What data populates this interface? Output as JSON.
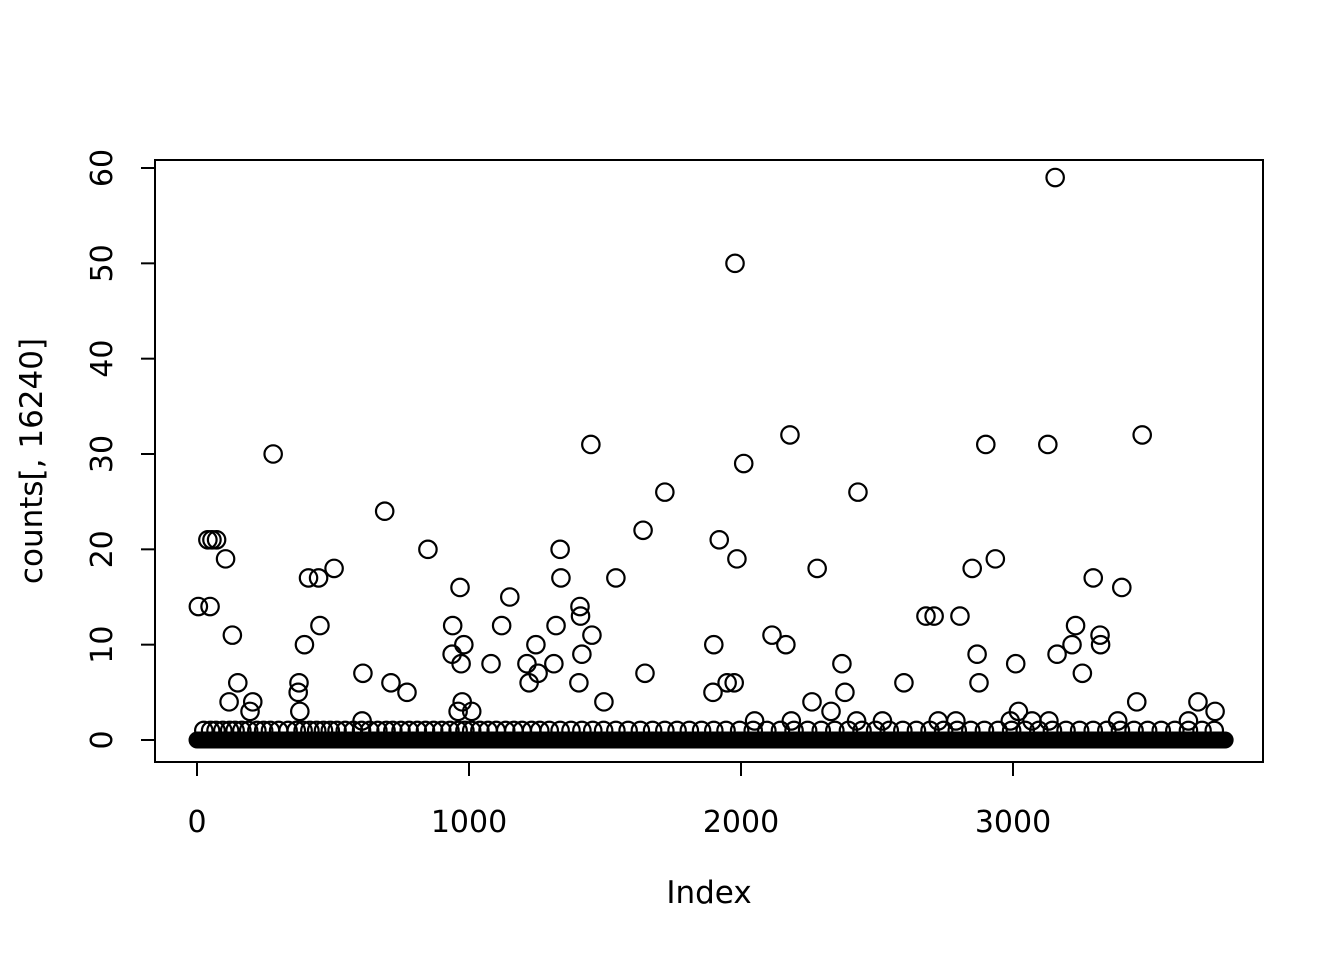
{
  "colors": {
    "foreground": "#000000",
    "background": "#ffffff"
  },
  "chart_data": {
    "type": "scatter",
    "title": "",
    "xlabel": "Index",
    "ylabel": "counts[, 16240]",
    "x_ticks": [
      0,
      1000,
      2000,
      3000
    ],
    "y_ticks": [
      0,
      10,
      20,
      30,
      40,
      50,
      60
    ],
    "xlim": [
      -80,
      3920
    ],
    "ylim": [
      -2.3,
      61
    ],
    "grid": false,
    "legend": "none",
    "marker": "open-circle",
    "points": [
      [
        5,
        14
      ],
      [
        40,
        21
      ],
      [
        48,
        14
      ],
      [
        55,
        21
      ],
      [
        72,
        21
      ],
      [
        105,
        19
      ],
      [
        118,
        4
      ],
      [
        130,
        11
      ],
      [
        150,
        6
      ],
      [
        195,
        3
      ],
      [
        205,
        4
      ],
      [
        280,
        30
      ],
      [
        372,
        5
      ],
      [
        375,
        6
      ],
      [
        378,
        3
      ],
      [
        395,
        10
      ],
      [
        410,
        17
      ],
      [
        447,
        17
      ],
      [
        452,
        12
      ],
      [
        504,
        18
      ],
      [
        607,
        2
      ],
      [
        610,
        7
      ],
      [
        690,
        24
      ],
      [
        713,
        6
      ],
      [
        772,
        5
      ],
      [
        849,
        20
      ],
      [
        938,
        9
      ],
      [
        940,
        12
      ],
      [
        960,
        3
      ],
      [
        967,
        16
      ],
      [
        971,
        8
      ],
      [
        975,
        4
      ],
      [
        981,
        10
      ],
      [
        1010,
        3
      ],
      [
        1081,
        8
      ],
      [
        1120,
        12
      ],
      [
        1150,
        15
      ],
      [
        1213,
        8
      ],
      [
        1221,
        6
      ],
      [
        1246,
        10
      ],
      [
        1254,
        7
      ],
      [
        1312,
        8
      ],
      [
        1320,
        12
      ],
      [
        1335,
        20
      ],
      [
        1338,
        17
      ],
      [
        1404,
        6
      ],
      [
        1408,
        14
      ],
      [
        1410,
        13
      ],
      [
        1415,
        9
      ],
      [
        1448,
        31
      ],
      [
        1452,
        11
      ],
      [
        1496,
        4
      ],
      [
        1540,
        17
      ],
      [
        1640,
        22
      ],
      [
        1647,
        7
      ],
      [
        1720,
        26
      ],
      [
        1897,
        5
      ],
      [
        1900,
        10
      ],
      [
        1920,
        21
      ],
      [
        1949,
        6
      ],
      [
        1975,
        6
      ],
      [
        1978,
        50
      ],
      [
        1985,
        19
      ],
      [
        2010,
        29
      ],
      [
        2050,
        2
      ],
      [
        2114,
        11
      ],
      [
        2165,
        10
      ],
      [
        2180,
        32
      ],
      [
        2185,
        2
      ],
      [
        2261,
        4
      ],
      [
        2280,
        18
      ],
      [
        2331,
        3
      ],
      [
        2371,
        8
      ],
      [
        2382,
        5
      ],
      [
        2425,
        2
      ],
      [
        2430,
        26
      ],
      [
        2520,
        2
      ],
      [
        2599,
        6
      ],
      [
        2680,
        13
      ],
      [
        2710,
        13
      ],
      [
        2725,
        2
      ],
      [
        2790,
        2
      ],
      [
        2805,
        13
      ],
      [
        2850,
        18
      ],
      [
        2868,
        9
      ],
      [
        2875,
        6
      ],
      [
        2900,
        31
      ],
      [
        2935,
        19
      ],
      [
        2990,
        2
      ],
      [
        3010,
        8
      ],
      [
        3020,
        3
      ],
      [
        3070,
        2
      ],
      [
        3128,
        31
      ],
      [
        3132,
        2
      ],
      [
        3155,
        59
      ],
      [
        3162,
        9
      ],
      [
        3217,
        10
      ],
      [
        3230,
        12
      ],
      [
        3255,
        7
      ],
      [
        3295,
        17
      ],
      [
        3320,
        11
      ],
      [
        3322,
        10
      ],
      [
        3385,
        2
      ],
      [
        3400,
        16
      ],
      [
        3455,
        4
      ],
      [
        3475,
        32
      ],
      [
        3645,
        2
      ],
      [
        3680,
        4
      ],
      [
        3743,
        3
      ]
    ],
    "ones_x": [
      25,
      50,
      70,
      95,
      120,
      140,
      165,
      190,
      220,
      245,
      270,
      300,
      335,
      365,
      390,
      415,
      440,
      465,
      490,
      515,
      545,
      575,
      605,
      635,
      665,
      695,
      720,
      750,
      780,
      810,
      840,
      870,
      900,
      930,
      960,
      985,
      1010,
      1040,
      1070,
      1100,
      1135,
      1165,
      1195,
      1230,
      1260,
      1295,
      1335,
      1375,
      1415,
      1455,
      1495,
      1540,
      1585,
      1630,
      1675,
      1720,
      1765,
      1810,
      1855,
      1900,
      1945,
      1995,
      2045,
      2095,
      2145,
      2195,
      2245,
      2295,
      2345,
      2395,
      2445,
      2495,
      2545,
      2595,
      2645,
      2695,
      2745,
      2795,
      2845,
      2895,
      2945,
      2995,
      3045,
      3095,
      3145,
      3195,
      3245,
      3295,
      3345,
      3395,
      3445,
      3495,
      3545,
      3595,
      3645,
      3695,
      3740
    ],
    "baseline_band": {
      "y": 0,
      "x_min": 0,
      "x_max": 3780,
      "note": "solid black band of overplotted zero-count points"
    }
  }
}
